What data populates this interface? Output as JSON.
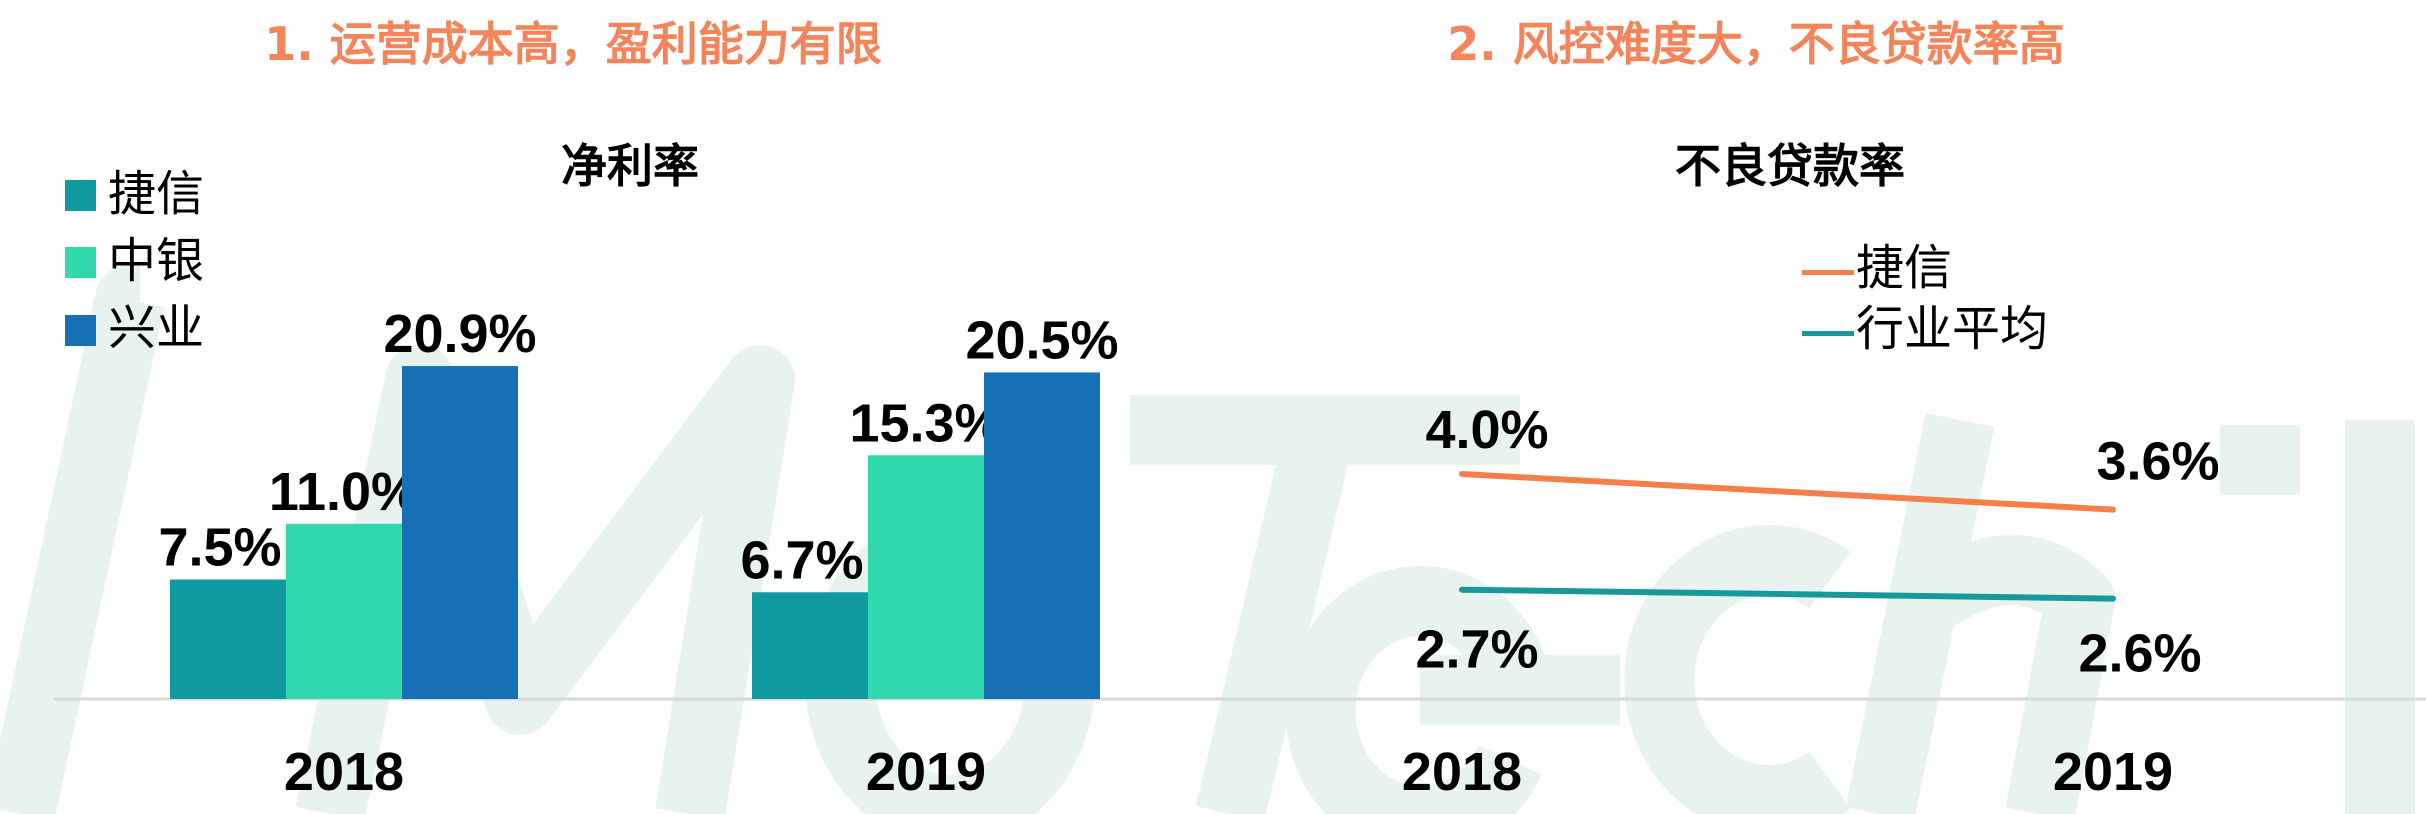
{
  "watermark": "MoTech",
  "headings": [
    "1. 运营成本高，盈利能力有限",
    "2. 风控难度大，不良贷款率高"
  ],
  "colors": {
    "heading": "#f4845a",
    "jiexin_bar": "#0e9a9e",
    "zhongyin_bar": "#2fd9ad",
    "xingye_bar": "#1570b5",
    "jiexin_line": "#f47f4a",
    "industry_line": "#17999b"
  },
  "chart_data": [
    {
      "type": "bar",
      "title": "净利率",
      "categories": [
        "2018",
        "2019"
      ],
      "series": [
        {
          "name": "捷信",
          "values": [
            7.5,
            6.7
          ],
          "labels": [
            "7.5%",
            "6.7%"
          ]
        },
        {
          "name": "中银",
          "values": [
            11.0,
            15.3
          ],
          "labels": [
            "11.0%",
            "15.3%"
          ]
        },
        {
          "name": "兴业",
          "values": [
            20.9,
            20.5
          ],
          "labels": [
            "20.9%",
            "20.5%"
          ]
        }
      ],
      "unit": "%",
      "legend": "top-left",
      "grid": false
    },
    {
      "type": "line",
      "title": "不良贷款率",
      "categories": [
        "2018",
        "2019"
      ],
      "series": [
        {
          "name": "捷信",
          "values": [
            4.0,
            3.6
          ],
          "labels": [
            "4.0%",
            "3.6%"
          ]
        },
        {
          "name": "行业平均",
          "values": [
            2.7,
            2.6
          ],
          "labels": [
            "2.7%",
            "2.6%"
          ]
        }
      ],
      "unit": "%",
      "legend": "top-right",
      "grid": false
    }
  ]
}
